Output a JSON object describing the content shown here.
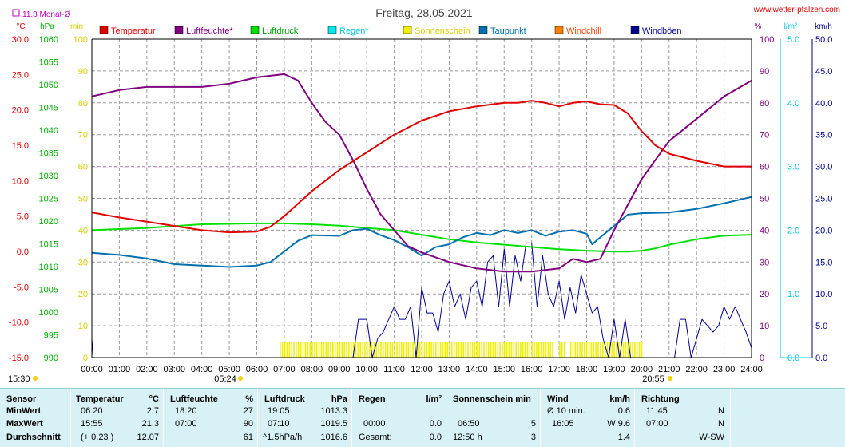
{
  "title": "Freitag, 28.05.2021",
  "source": "www.wetter-pfalzen.com",
  "monthly_avg_label": "11.8 Monat-Ø",
  "colors": {
    "temperature": "#e30000",
    "humidity": "#800080",
    "pressure": "#00e000",
    "rain": "#00e8e8",
    "sunshine": "#f0f000",
    "dewpoint": "#0070b0",
    "windchill": "#ff8000",
    "gusts": "#000090"
  },
  "axes": {
    "temp": {
      "unit": "°C",
      "min": -15,
      "max": 30,
      "ticks": [
        "30.0",
        "25.0",
        "20.0",
        "15.0",
        "10.0",
        "5.0",
        "0.0",
        "-5.0",
        "-10.0",
        "-15.0"
      ]
    },
    "pressure": {
      "unit": "hPa",
      "min": 990,
      "max": 1060,
      "ticks": [
        "1060",
        "1055",
        "1050",
        "1045",
        "1040",
        "1035",
        "1030",
        "1025",
        "1020",
        "1015",
        "1010",
        "1005",
        "1000",
        "995",
        "990"
      ]
    },
    "sun": {
      "unit": "min",
      "min": 0,
      "max": 100,
      "ticks": [
        "100",
        "90",
        "80",
        "70",
        "60",
        "50",
        "40",
        "30",
        "20",
        "10",
        "0"
      ]
    },
    "humidity": {
      "unit": "%",
      "min": 0,
      "max": 100,
      "ticks": [
        "100",
        "90",
        "80",
        "70",
        "60",
        "50",
        "40",
        "30",
        "20",
        "10",
        "0"
      ]
    },
    "rain": {
      "unit": "l/m²",
      "min": 0,
      "max": 5,
      "ticks": [
        "5.0",
        "4.0",
        "3.0",
        "2.0",
        "1.0",
        "0.0"
      ]
    },
    "wind": {
      "unit": "km/h",
      "min": 0,
      "max": 50,
      "ticks": [
        "50.0",
        "45.0",
        "40.0",
        "35.0",
        "30.0",
        "25.0",
        "20.0",
        "15.0",
        "10.0",
        "5.0",
        "0.0"
      ]
    }
  },
  "x_ticks": [
    "00:00",
    "01:00",
    "02:00",
    "03:00",
    "04:00",
    "05:00",
    "06:00",
    "07:00",
    "08:00",
    "09:00",
    "10:00",
    "11:00",
    "12:00",
    "13:00",
    "14:00",
    "15:00",
    "16:00",
    "17:00",
    "18:00",
    "19:00",
    "20:00",
    "21:00",
    "22:00",
    "23:00",
    "24:00"
  ],
  "sunrise": "05:24",
  "sunset": "20:55",
  "day_length": "15:30",
  "legend": [
    {
      "label": "Temperatur",
      "color": "#e30000",
      "text_color": "#e30000"
    },
    {
      "label": "Luftfeuchte*",
      "color": "#800080",
      "text_color": "#800080"
    },
    {
      "label": "Luftdruck",
      "color": "#00e000",
      "text_color": "#00a000"
    },
    {
      "label": "Regen*",
      "color": "#00e8e8",
      "text_color": "#00c8e0"
    },
    {
      "label": "Sonnenschein",
      "color": "#f0f000",
      "text_color": "#e0d000"
    },
    {
      "label": "Taupunkt",
      "color": "#0070b0",
      "text_color": "#0070b0"
    },
    {
      "label": "Windchill",
      "color": "#ff8000",
      "text_color": "#ff4000"
    },
    {
      "label": "Windböen",
      "color": "#000090",
      "text_color": "#000090"
    }
  ],
  "chart_data": {
    "type": "line",
    "title": "Freitag, 28.05.2021",
    "x_range_hours": [
      0,
      24
    ],
    "reference_line": {
      "name": "Monat-Ø",
      "value": 11.8,
      "axis": "temp"
    },
    "series": [
      {
        "name": "Temperatur",
        "axis": "temp",
        "x": [
          0,
          1,
          2,
          3,
          4,
          5,
          6,
          6.5,
          7,
          8,
          9,
          10,
          11,
          12,
          13,
          14,
          15,
          15.5,
          16,
          16.5,
          17,
          17.5,
          18,
          18.5,
          19,
          19.5,
          20,
          20.5,
          21,
          22,
          23,
          24
        ],
        "values": [
          5.5,
          4.8,
          4.2,
          3.6,
          3.0,
          2.7,
          2.8,
          3.5,
          5.0,
          8.5,
          11.5,
          14.0,
          16.5,
          18.5,
          19.8,
          20.5,
          21.0,
          21.0,
          21.3,
          21.0,
          20.5,
          21.0,
          21.2,
          20.8,
          20.7,
          19.5,
          17.0,
          15.0,
          13.8,
          12.8,
          12.0,
          12.0
        ]
      },
      {
        "name": "Luftfeuchte",
        "axis": "humidity",
        "x": [
          0,
          1,
          2,
          3,
          4,
          5,
          6,
          7,
          7.5,
          8,
          8.5,
          9,
          9.5,
          10,
          10.5,
          11,
          11.5,
          12,
          13,
          14,
          15,
          16,
          17,
          17.5,
          18,
          18.5,
          19,
          19.5,
          20,
          20.5,
          21,
          22,
          23,
          24
        ],
        "values": [
          82,
          84,
          85,
          85,
          85,
          86,
          88,
          89,
          87,
          80,
          74,
          70,
          62,
          53,
          45,
          40,
          35,
          33,
          30,
          28,
          27,
          27,
          28,
          31,
          30,
          31,
          40,
          48,
          56,
          62,
          68,
          75,
          82,
          87
        ]
      },
      {
        "name": "Luftdruck",
        "axis": "pressure",
        "x": [
          0,
          2,
          4,
          6,
          7,
          8,
          9,
          10,
          11,
          12,
          13,
          14,
          15,
          16,
          17,
          18,
          19,
          19.5,
          20,
          20.5,
          21,
          22,
          23,
          24
        ],
        "values": [
          1018,
          1018.5,
          1019.3,
          1019.5,
          1019.5,
          1019.3,
          1019,
          1018.5,
          1018,
          1017,
          1016,
          1015.3,
          1014.8,
          1014.3,
          1013.8,
          1013.5,
          1013.3,
          1013.3,
          1013.5,
          1014,
          1014.8,
          1016,
          1016.8,
          1017
        ]
      },
      {
        "name": "Taupunkt",
        "axis": "temp",
        "x": [
          0,
          1,
          2,
          3,
          4,
          5,
          6,
          6.5,
          7,
          7.5,
          8,
          9,
          9.5,
          10,
          10.5,
          11,
          11.5,
          12,
          12.5,
          13,
          13.5,
          14,
          14.5,
          15,
          15.5,
          16,
          16.5,
          17,
          17.5,
          18,
          18.2,
          18.5,
          19,
          19.5,
          20,
          21,
          22,
          23,
          24
        ],
        "values": [
          -0.2,
          -0.5,
          -1.0,
          -1.8,
          -2.0,
          -2.2,
          -2.0,
          -1.5,
          0.0,
          1.5,
          2.3,
          2.2,
          3.0,
          3.2,
          2.3,
          1.6,
          0.6,
          -0.6,
          0.6,
          1.0,
          2.0,
          2.6,
          2.3,
          3.0,
          2.6,
          3.0,
          2.2,
          2.8,
          3.0,
          2.5,
          1.0,
          2.0,
          3.6,
          5.2,
          5.4,
          5.5,
          6.0,
          6.8,
          7.7
        ]
      },
      {
        "name": "Windböen",
        "axis": "wind",
        "x": [
          0,
          0.05,
          0.1,
          9.5,
          9.7,
          10,
          10.2,
          10.4,
          10.6,
          10.8,
          11,
          11.2,
          11.4,
          11.6,
          11.8,
          12,
          12.2,
          12.4,
          12.6,
          12.8,
          13,
          13.2,
          13.4,
          13.6,
          13.8,
          14,
          14.2,
          14.4,
          14.6,
          14.8,
          15,
          15.2,
          15.4,
          15.6,
          15.8,
          16,
          16.2,
          16.4,
          16.6,
          16.8,
          17,
          17.2,
          17.4,
          17.6,
          17.8,
          18,
          18.2,
          18.4,
          18.6,
          18.8,
          19,
          19.2,
          19.4,
          19.6,
          19.8,
          20,
          20.2,
          20.4,
          20.6,
          20.8,
          21,
          21.2,
          21.4,
          21.6,
          21.8,
          22,
          22.2,
          22.4,
          22.6,
          22.8,
          23,
          23.2,
          23.4,
          23.6,
          23.8,
          24
        ],
        "values": [
          3,
          0,
          0,
          0,
          6,
          6,
          0,
          3,
          4,
          6,
          8,
          6,
          6,
          8,
          0,
          11,
          7,
          7,
          4,
          10,
          12,
          8,
          10,
          6,
          11,
          12,
          8,
          15,
          16,
          8,
          17,
          8,
          16,
          12,
          18,
          18,
          8,
          16,
          10,
          8,
          12,
          6,
          11,
          7,
          13,
          10,
          7,
          8,
          3,
          0,
          6,
          0,
          6,
          0,
          0,
          0,
          0,
          0,
          0,
          0,
          0,
          0,
          6,
          6,
          0,
          3,
          6,
          5,
          4,
          5,
          8,
          6,
          8,
          6,
          4,
          1.5
        ]
      },
      {
        "name": "Sonnenschein",
        "axis": "sun",
        "intervals": [
          [
            6.83,
            16.75
          ],
          [
            17.0,
            17.2
          ],
          [
            17.4,
            20.0
          ]
        ],
        "value": 5
      }
    ]
  },
  "stats": {
    "sensor": {
      "header": "Sensor",
      "rows": [
        "MinWert",
        "MaxWert",
        "Durchschnitt"
      ]
    },
    "temp": {
      "header": "Temperatur",
      "unit": "°C",
      "rows": [
        [
          "06:20",
          "2.7"
        ],
        [
          "15:55",
          "21.3"
        ],
        [
          "(+ 0.23 )",
          "12.07"
        ]
      ]
    },
    "humidity": {
      "header": "Luftfeuchte",
      "unit": "%",
      "rows": [
        [
          "18:20",
          "27"
        ],
        [
          "07:00",
          "90"
        ],
        [
          "",
          "61"
        ]
      ]
    },
    "pressure": {
      "header": "Luftdruck",
      "unit": "hPa",
      "rows": [
        [
          "19:05",
          "1013.3"
        ],
        [
          "07:10",
          "1019.5"
        ],
        [
          "^1.5hPa/h",
          "1016.6"
        ]
      ]
    },
    "rain": {
      "header": "Regen",
      "unit": "l/m²",
      "rows": [
        [
          "",
          ""
        ],
        [
          "00:00",
          "0.0"
        ],
        [
          "Gesamt:",
          "0.0"
        ]
      ]
    },
    "sun": {
      "header": "Sonnenschein min",
      "unit": "",
      "rows": [
        [
          "",
          ""
        ],
        [
          "06:50",
          "5"
        ],
        [
          "12:50 h",
          "3"
        ]
      ]
    },
    "wind": {
      "header": "Wind",
      "unit": "km/h",
      "rows": [
        [
          "Ø 10 min.",
          "0.6"
        ],
        [
          "16:05",
          "W 9.6"
        ],
        [
          "",
          "1.4"
        ]
      ]
    },
    "direction": {
      "header": "Richtung",
      "rows": [
        [
          "11:45",
          "N"
        ],
        [
          "07:00",
          "N"
        ],
        [
          "",
          "W-SW"
        ]
      ]
    }
  }
}
